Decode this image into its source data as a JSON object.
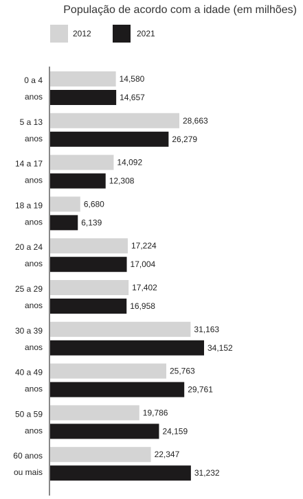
{
  "chart_data": {
    "type": "bar",
    "orientation": "horizontal",
    "title": "População de acordo com a idade (em milhões)",
    "categories": [
      [
        "0 a 4",
        "anos"
      ],
      [
        "5 a 13",
        "anos"
      ],
      [
        "14 a 17",
        "anos"
      ],
      [
        "18 a 19",
        "anos"
      ],
      [
        "20 a 24",
        "anos"
      ],
      [
        "25 a 29",
        "anos"
      ],
      [
        "30 a 39",
        "anos"
      ],
      [
        "40 a 49",
        "anos"
      ],
      [
        "50 a 59",
        "anos"
      ],
      [
        "60 anos",
        "ou mais"
      ]
    ],
    "series": [
      {
        "name": "2012",
        "color": "#d4d4d4",
        "values": [
          14.58,
          28.663,
          14.092,
          6.68,
          17.224,
          17.402,
          31.163,
          25.763,
          19.786,
          22.347
        ],
        "labels": [
          "14,580",
          "28,663",
          "14,092",
          "6,680",
          "17,224",
          "17,402",
          "31,163",
          "25,763",
          "19,786",
          "22,347"
        ]
      },
      {
        "name": "2021",
        "color": "#1c1a1b",
        "values": [
          14.657,
          26.279,
          12.308,
          6.139,
          17.004,
          16.958,
          34.152,
          29.761,
          24.159,
          31.232
        ],
        "labels": [
          "14,657",
          "26,279",
          "12,308",
          "6,139",
          "17,004",
          "16,958",
          "34,152",
          "29,761",
          "24,159",
          "31,232"
        ]
      }
    ],
    "xlim": [
      0,
      40
    ],
    "grid": false,
    "legend": "top-left"
  }
}
